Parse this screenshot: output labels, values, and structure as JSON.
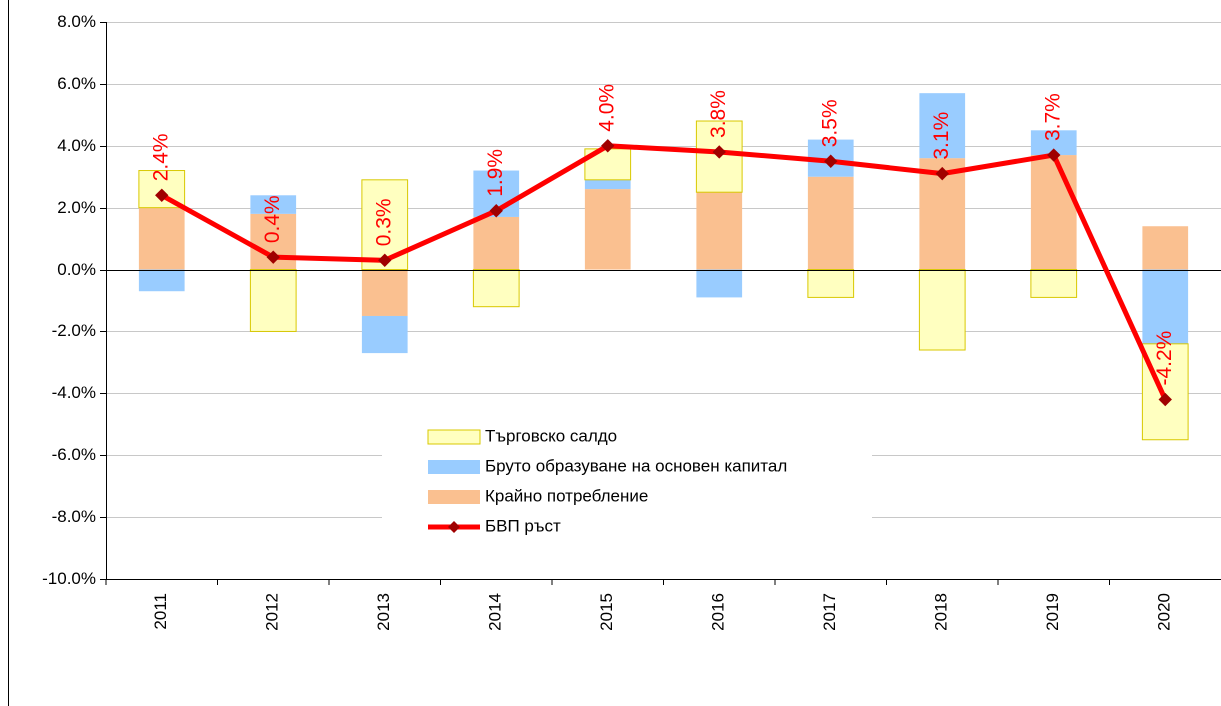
{
  "chart_data": {
    "type": "stacked-bar-line",
    "categories": [
      "2011",
      "2012",
      "2013",
      "2014",
      "2015",
      "2016",
      "2017",
      "2018",
      "2019",
      "2020"
    ],
    "series": [
      {
        "name": "Търговско салдо",
        "type": "bar",
        "color": "#ffffc0",
        "stroke": "#d8c800",
        "values": [
          1.2,
          -2.0,
          2.9,
          -1.2,
          1.0,
          2.3,
          -0.9,
          -2.6,
          -0.9,
          -3.1
        ]
      },
      {
        "name": "Бруто образуване на основен капитал",
        "type": "bar",
        "color": "#99ccff",
        "values": [
          -0.7,
          0.6,
          -1.2,
          1.5,
          0.3,
          -0.9,
          1.2,
          2.1,
          0.8,
          -2.4
        ]
      },
      {
        "name": "Крайно потребление",
        "type": "bar",
        "color": "#fac090",
        "values": [
          2.0,
          1.8,
          -1.5,
          1.7,
          2.6,
          2.5,
          3.0,
          3.6,
          3.7,
          1.4
        ]
      },
      {
        "name": "БВП ръст",
        "type": "line",
        "color": "#ff0000",
        "marker_color": "#a00000",
        "values": [
          2.4,
          0.4,
          0.3,
          1.9,
          4.0,
          3.8,
          3.5,
          3.1,
          3.7,
          -4.2
        ],
        "value_labels": [
          "2.4%",
          "0.4%",
          "0.3%",
          "1.9%",
          "4.0%",
          "3.8%",
          "3.5%",
          "3.1%",
          "3.7%",
          "-4.2%"
        ]
      }
    ],
    "ylim": [
      -10,
      8
    ],
    "yticks": [
      {
        "value": -10,
        "label": "-10.0%"
      },
      {
        "value": -8,
        "label": "-8.0%"
      },
      {
        "value": -6,
        "label": "-6.0%"
      },
      {
        "value": -4,
        "label": "-4.0%"
      },
      {
        "value": -2,
        "label": "-2.0%"
      },
      {
        "value": 0,
        "label": "0.0%"
      },
      {
        "value": 2,
        "label": "2.0%"
      },
      {
        "value": 4,
        "label": "4.0%"
      },
      {
        "value": 6,
        "label": "6.0%"
      },
      {
        "value": 8,
        "label": "8.0%"
      }
    ],
    "grid": true
  }
}
